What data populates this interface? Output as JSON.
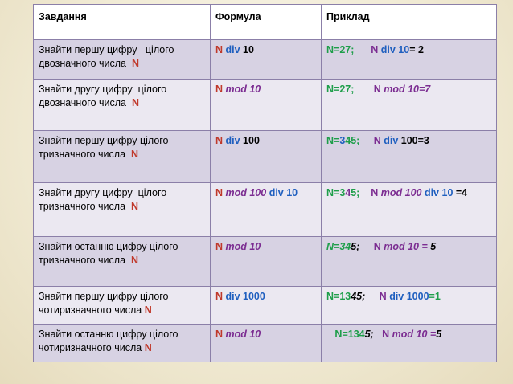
{
  "colors": {
    "red": "#c0392b",
    "blue": "#1f5fbf",
    "green": "#1e9e4a",
    "purple": "#7b2c91",
    "black": "#000000"
  },
  "table": {
    "headers": [
      "Завдання",
      "Формула",
      "Приклад"
    ],
    "rows": [
      {
        "task": [
          "Знайти першу цифру   цілого",
          "двозначного числа  "
        ],
        "task_n": "N",
        "formula": [
          {
            "t": "N ",
            "c": "red",
            "b": true,
            "i": false
          },
          {
            "t": "div",
            "c": "blue",
            "b": true,
            "i": false
          },
          {
            "t": " 10",
            "c": "black",
            "b": true,
            "i": false
          }
        ],
        "example": [
          {
            "t": "N=27;",
            "c": "green",
            "b": true,
            "i": false
          },
          {
            "t": "      N ",
            "c": "purple",
            "b": true,
            "i": false
          },
          {
            "t": "div",
            "c": "blue",
            "b": true,
            "i": false
          },
          {
            "t": " 10",
            "c": "blue",
            "b": true,
            "i": false
          },
          {
            "t": "= 2",
            "c": "black",
            "b": true,
            "i": false
          }
        ]
      },
      {
        "task": [
          "Знайти другу цифру  цілого",
          "двозначного числа  "
        ],
        "task_n": "N",
        "formula": [
          {
            "t": "N ",
            "c": "red",
            "b": true,
            "i": false
          },
          {
            "t": "mod 10",
            "c": "purple",
            "b": true,
            "i": true
          }
        ],
        "example": [
          {
            "t": "N=27;",
            "c": "green",
            "b": true,
            "i": false
          },
          {
            "t": "       N ",
            "c": "purple",
            "b": true,
            "i": false
          },
          {
            "t": "mod 10=7",
            "c": "purple",
            "b": true,
            "i": true
          }
        ]
      },
      {
        "task": [
          "Знайти першу цифру цілого",
          "тризначного числа  "
        ],
        "task_n": "N",
        "formula": [
          {
            "t": "N ",
            "c": "red",
            "b": true,
            "i": false
          },
          {
            "t": "div",
            "c": "blue",
            "b": true,
            "i": false
          },
          {
            "t": " 100",
            "c": "black",
            "b": true,
            "i": false
          }
        ],
        "example": [
          {
            "t": "N=",
            "c": "green",
            "b": true,
            "i": false
          },
          {
            "t": "3",
            "c": "blue",
            "b": true,
            "i": false
          },
          {
            "t": "45;",
            "c": "green",
            "b": true,
            "i": false
          },
          {
            "t": "     N ",
            "c": "purple",
            "b": true,
            "i": false
          },
          {
            "t": "div",
            "c": "blue",
            "b": true,
            "i": false
          },
          {
            "t": " 100=3",
            "c": "black",
            "b": true,
            "i": false
          }
        ]
      },
      {
        "task": [
          "Знайти другу цифру  цілого",
          "тризначного числа  "
        ],
        "task_n": "N",
        "formula": [
          {
            "t": "N ",
            "c": "red",
            "b": true,
            "i": false
          },
          {
            "t": "mod 100 ",
            "c": "purple",
            "b": true,
            "i": true
          },
          {
            "t": "div 10",
            "c": "blue",
            "b": true,
            "i": false
          }
        ],
        "example": [
          {
            "t": "N=3",
            "c": "green",
            "b": true,
            "i": false
          },
          {
            "t": "4",
            "c": "purple",
            "b": true,
            "i": false
          },
          {
            "t": "5;",
            "c": "green",
            "b": true,
            "i": false
          },
          {
            "t": "    N ",
            "c": "purple",
            "b": true,
            "i": false
          },
          {
            "t": "mod 100 ",
            "c": "purple",
            "b": true,
            "i": true
          },
          {
            "t": "div 10 ",
            "c": "blue",
            "b": true,
            "i": false
          },
          {
            "t": "=4",
            "c": "black",
            "b": true,
            "i": false
          }
        ]
      },
      {
        "task": [
          "Знайти останню цифру цілого",
          "тризначного числа  "
        ],
        "task_n": "N",
        "formula": [
          {
            "t": "N ",
            "c": "red",
            "b": true,
            "i": false
          },
          {
            "t": "mod 10",
            "c": "purple",
            "b": true,
            "i": true
          }
        ],
        "example": [
          {
            "t": "N=34",
            "c": "green",
            "b": true,
            "i": true
          },
          {
            "t": "5;",
            "c": "black",
            "b": true,
            "i": true
          },
          {
            "t": "     N ",
            "c": "purple",
            "b": true,
            "i": false
          },
          {
            "t": "mod 10 = ",
            "c": "purple",
            "b": true,
            "i": true
          },
          {
            "t": "5",
            "c": "black",
            "b": true,
            "i": true
          }
        ]
      },
      {
        "task": [
          "Знайти першу цифру цілого",
          "чотиризначного числа "
        ],
        "task_n": "N",
        "formula": [
          {
            "t": "N ",
            "c": "red",
            "b": true,
            "i": false
          },
          {
            "t": "div 1000",
            "c": "blue",
            "b": true,
            "i": false
          }
        ],
        "example": [
          {
            "t": "N=13",
            "c": "green",
            "b": true,
            "i": false
          },
          {
            "t": "45;",
            "c": "black",
            "b": true,
            "i": true
          },
          {
            "t": "     N ",
            "c": "purple",
            "b": true,
            "i": false
          },
          {
            "t": "div 1000",
            "c": "blue",
            "b": true,
            "i": false
          },
          {
            "t": "=1",
            "c": "green",
            "b": true,
            "i": false
          }
        ]
      },
      {
        "task": [
          "Знайти останню цифру цілого",
          "чотиризначного числа "
        ],
        "task_n": "N",
        "formula": [
          {
            "t": "N ",
            "c": "red",
            "b": true,
            "i": false
          },
          {
            "t": "mod 10",
            "c": "purple",
            "b": true,
            "i": true
          }
        ],
        "example": [
          {
            "t": "   N=134",
            "c": "green",
            "b": true,
            "i": false
          },
          {
            "t": "5;",
            "c": "black",
            "b": true,
            "i": true
          },
          {
            "t": "   N ",
            "c": "purple",
            "b": true,
            "i": false
          },
          {
            "t": "mod 10 =",
            "c": "purple",
            "b": true,
            "i": true
          },
          {
            "t": "5",
            "c": "black",
            "b": true,
            "i": true
          }
        ]
      }
    ]
  }
}
